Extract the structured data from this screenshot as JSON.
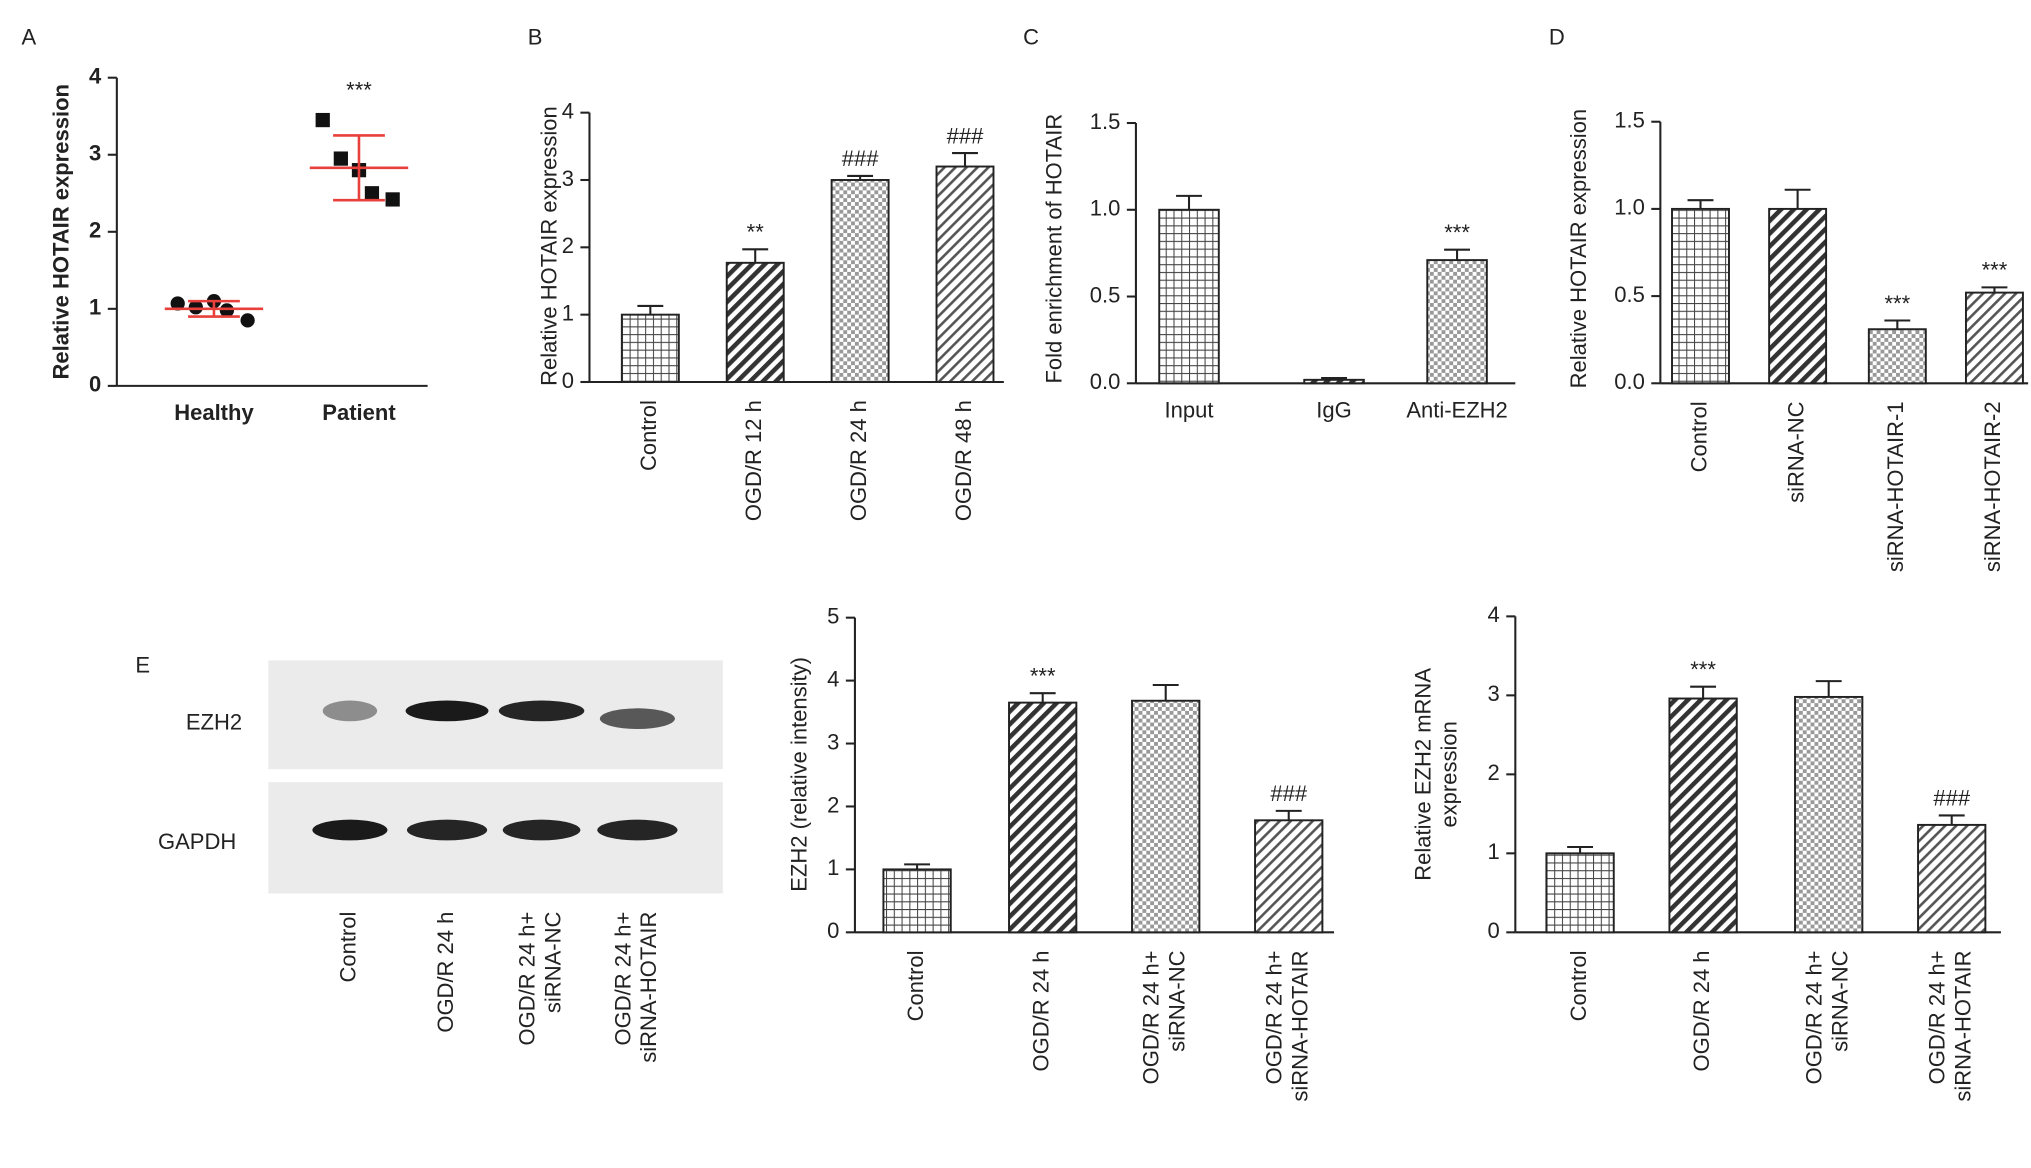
{
  "chart_data": [
    {
      "type": "dot",
      "panel": "A",
      "ylabel": "Relative HOTAIR expression",
      "categories": [
        "Healthy",
        "Patient"
      ],
      "points": [
        [
          1.07,
          1.02,
          1.1,
          0.98,
          0.85
        ],
        [
          3.45,
          2.95,
          2.8,
          2.5,
          2.42
        ]
      ],
      "markers": [
        "circle",
        "square"
      ],
      "means": [
        1.0,
        2.83
      ],
      "errors": [
        0.1,
        0.42
      ],
      "color": "#e8413c",
      "annotations": [
        null,
        "***"
      ],
      "ylim": [
        0,
        4
      ],
      "yticks": [
        0,
        1,
        2,
        3,
        4
      ]
    },
    {
      "type": "bar",
      "panel": "B",
      "ylabel": "Relative HOTAIR expression",
      "categories": [
        "Control",
        "OGD/R 12 h",
        "OGD/R 24 h",
        "OGD/R 48 h"
      ],
      "values": [
        1.0,
        1.77,
        3.0,
        3.2
      ],
      "errors": [
        0.13,
        0.2,
        0.06,
        0.2
      ],
      "annotations": [
        null,
        "**",
        "###",
        "###"
      ],
      "patterns": [
        "grid",
        "diag",
        "dots",
        "diag-light"
      ],
      "ylim": [
        0,
        4
      ],
      "yticks": [
        0,
        1,
        2,
        3,
        4
      ]
    },
    {
      "type": "bar",
      "panel": "C",
      "ylabel": "Fold enrichment of HOTAIR",
      "categories": [
        "Input",
        "IgG",
        "Anti-EZH2"
      ],
      "values": [
        1.0,
        0.02,
        0.71
      ],
      "errors": [
        0.08,
        0.01,
        0.06
      ],
      "annotations": [
        null,
        null,
        "***"
      ],
      "patterns": [
        "grid",
        "diag",
        "dots"
      ],
      "ylim": [
        0,
        1.5
      ],
      "yticks": [
        {
          "value": 0,
          "label": "0.0"
        },
        {
          "value": 0.5,
          "label": "0.5"
        },
        {
          "value": 1,
          "label": "1.0"
        },
        {
          "value": 1.5,
          "label": "1.5"
        }
      ]
    },
    {
      "type": "bar",
      "panel": "D",
      "ylabel": "Relative HOTAIR expression",
      "categories": [
        "Control",
        "siRNA-NC",
        "siRNA-HOTAIR-1",
        "siRNA-HOTAIR-2"
      ],
      "values": [
        1.0,
        1.0,
        0.31,
        0.52
      ],
      "errors": [
        0.05,
        0.11,
        0.05,
        0.03
      ],
      "annotations": [
        null,
        null,
        "***",
        "***"
      ],
      "patterns": [
        "grid",
        "diag",
        "dots",
        "diag-light"
      ],
      "ylim": [
        0,
        1.5
      ],
      "yticks": [
        {
          "value": 0,
          "label": "0.0"
        },
        {
          "value": 0.5,
          "label": "0.5"
        },
        {
          "value": 1,
          "label": "1.0"
        },
        {
          "value": 1.5,
          "label": "1.5"
        }
      ]
    },
    {
      "type": "bar",
      "ylabel": [
        "EZH2 (relative intensity)"
      ],
      "categories": [
        [
          "Control"
        ],
        [
          "OGD/R 24 h"
        ],
        [
          "OGD/R 24 h+",
          "siRNA-NC"
        ],
        [
          "OGD/R 24 h+",
          "siRNA-HOTAIR"
        ]
      ],
      "values": [
        1.0,
        3.65,
        3.68,
        1.78
      ],
      "errors": [
        0.08,
        0.15,
        0.25,
        0.15
      ],
      "annotations": [
        null,
        "***",
        null,
        "###"
      ],
      "patterns": [
        "grid",
        "diag",
        "dots",
        "diag-light"
      ],
      "ylim": [
        0,
        5
      ],
      "yticks": [
        0,
        1,
        2,
        3,
        4,
        5
      ]
    },
    {
      "type": "bar",
      "ylabel": [
        "Relative EZH2 mRNA",
        "expression"
      ],
      "categories": [
        [
          "Control"
        ],
        [
          "OGD/R 24 h"
        ],
        [
          "OGD/R 24 h+",
          "siRNA-NC"
        ],
        [
          "OGD/R 24 h+",
          "siRNA-HOTAIR"
        ]
      ],
      "values": [
        1.0,
        2.96,
        2.98,
        1.36
      ],
      "errors": [
        0.08,
        0.15,
        0.2,
        0.12
      ],
      "annotations": [
        null,
        "***",
        null,
        "###"
      ],
      "patterns": [
        "grid",
        "diag",
        "dots",
        "diag-light"
      ],
      "ylim": [
        0,
        4
      ],
      "yticks": [
        0,
        1,
        2,
        3,
        4
      ]
    }
  ],
  "blot": {
    "panel": "E",
    "rows": [
      "EZH2",
      "GAPDH"
    ],
    "lanes": [
      [
        "Control"
      ],
      [
        "OGD/R 24 h"
      ],
      [
        "OGD/R 24 h+",
        "siRNA-NC"
      ],
      [
        "OGD/R 24 h+",
        "siRNA-HOTAIR"
      ]
    ]
  }
}
